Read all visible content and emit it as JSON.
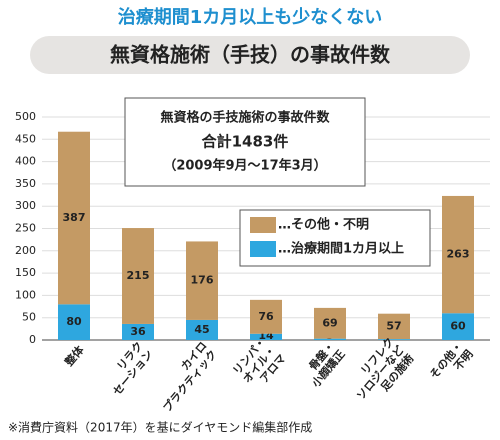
{
  "chart_data": {
    "type": "stacked_bar",
    "subtitle": "治療期間1カ月以上も少なくない",
    "title": "無資格施術（手技）の事故件数",
    "annotation": {
      "lines": [
        "無資格の手技施術の事故件数",
        "合計1483件",
        "（2009年9月〜17年3月）"
      ]
    },
    "categories": [
      "整体",
      "リラク\nセーション",
      "カイロ\nプラクティック",
      "リンパ・\nオイル・\nアロマ",
      "骨盤・\n小顔矯正",
      "リフレク\nソロジーなど\n足の施術",
      "その他・\n不明"
    ],
    "series": [
      {
        "name": "…治療期間1カ月以上",
        "color": "#2ea7df",
        "values": [
          80,
          36,
          45,
          14,
          3,
          2,
          60
        ]
      },
      {
        "name": "…その他・不明",
        "color": "#c49a64",
        "values": [
          387,
          215,
          176,
          76,
          69,
          57,
          263
        ]
      }
    ],
    "ylim": [
      0,
      500
    ],
    "yticks": [
      0,
      50,
      100,
      150,
      200,
      250,
      300,
      350,
      400,
      450,
      500
    ],
    "grid": true,
    "footnote": "※消費庁資料（2017年）を基にダイヤモンド編集部作成"
  }
}
